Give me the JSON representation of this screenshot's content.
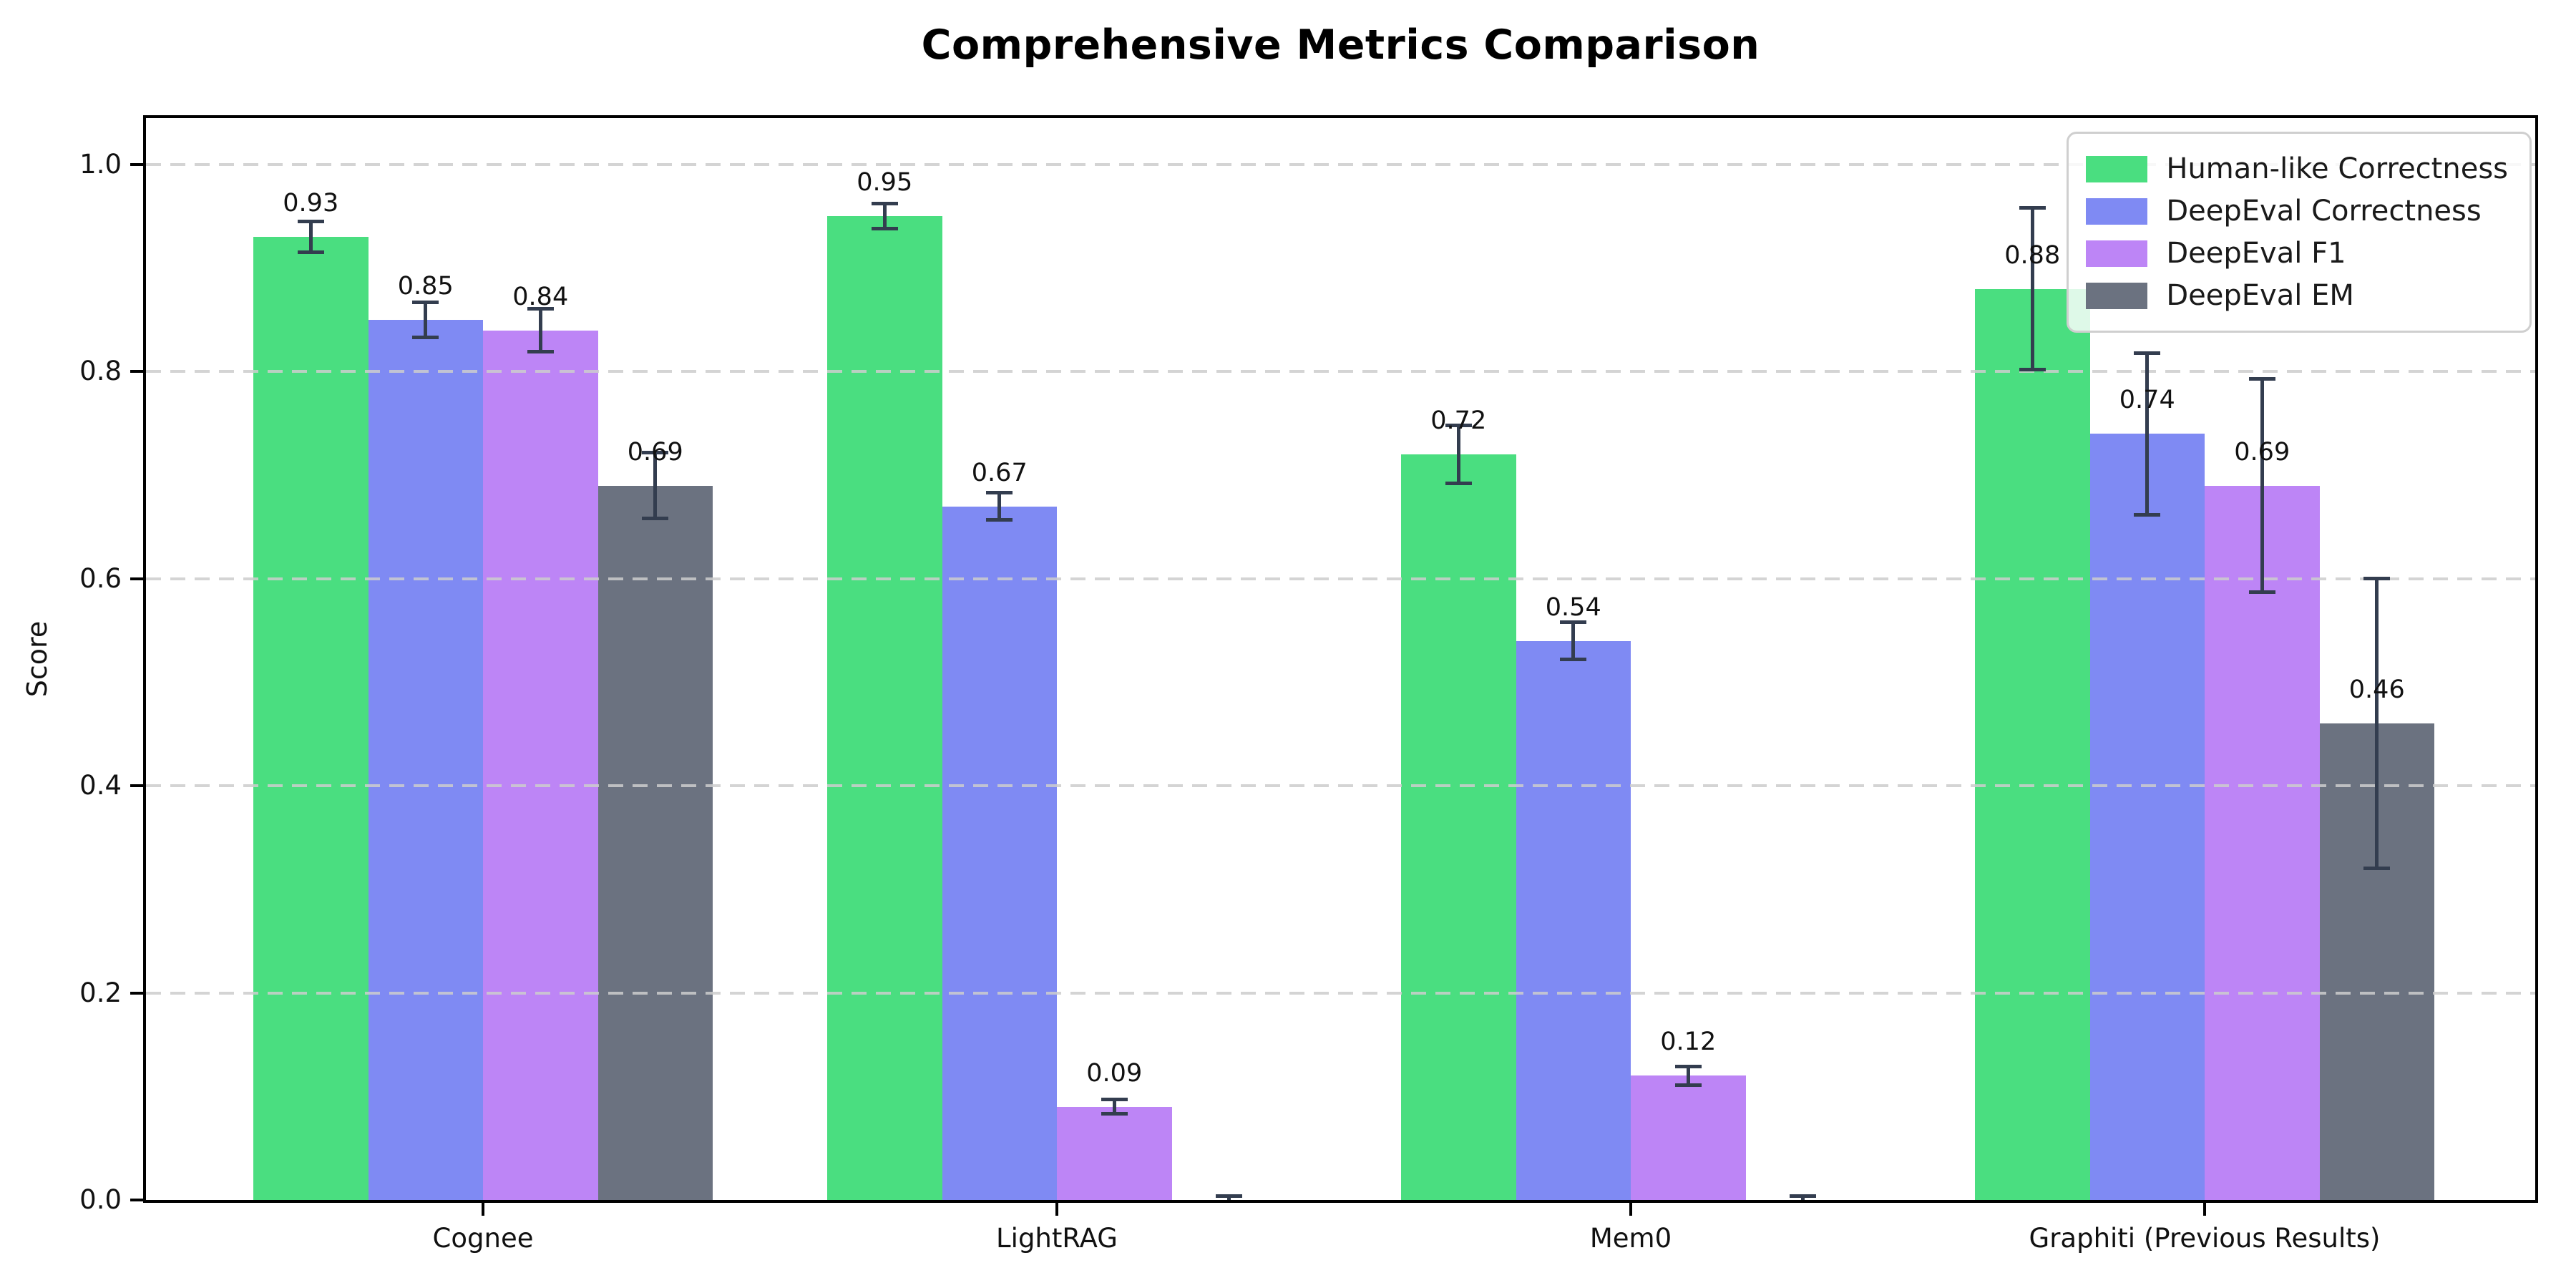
{
  "chart_data": {
    "type": "bar",
    "title": "Comprehensive Metrics Comparison",
    "ylabel": "Score",
    "xlabel": "",
    "categories": [
      "Cognee",
      "LightRAG",
      "Mem0",
      "Graphiti (Previous Results)"
    ],
    "series": [
      {
        "name": "Human-like Correctness",
        "color": "#4ade80",
        "values": [
          0.93,
          0.95,
          0.72,
          0.88
        ],
        "errors": [
          0.015,
          0.012,
          0.028,
          0.078
        ],
        "labels": [
          "0.93",
          "0.95",
          "0.72",
          "0.88"
        ]
      },
      {
        "name": "DeepEval Correctness",
        "color": "#7f8af3",
        "values": [
          0.85,
          0.67,
          0.54,
          0.74
        ],
        "errors": [
          0.017,
          0.013,
          0.018,
          0.078
        ],
        "labels": [
          "0.85",
          "0.67",
          "0.54",
          "0.74"
        ]
      },
      {
        "name": "DeepEval F1",
        "color": "#bd85f6",
        "values": [
          0.84,
          0.09,
          0.12,
          0.69
        ],
        "errors": [
          0.021,
          0.007,
          0.009,
          0.103
        ],
        "labels": [
          "0.84",
          "0.09",
          "0.12",
          "0.69"
        ]
      },
      {
        "name": "DeepEval EM",
        "color": "#6b7280",
        "values": [
          0.69,
          0.0,
          0.0,
          0.46
        ],
        "errors": [
          0.032,
          0.004,
          0.004,
          0.14
        ],
        "labels": [
          "0.69",
          null,
          null,
          "0.46"
        ]
      }
    ],
    "ylim": [
      0,
      1.045
    ],
    "yticks": [
      0.0,
      0.2,
      0.4,
      0.6,
      0.8,
      1.0
    ],
    "grid": {
      "axis": "y",
      "style": "dashed",
      "color": "#cdcdcd",
      "on_top": true
    },
    "legend": {
      "position": "upper right"
    },
    "error_bar_color": "#333d4f"
  }
}
